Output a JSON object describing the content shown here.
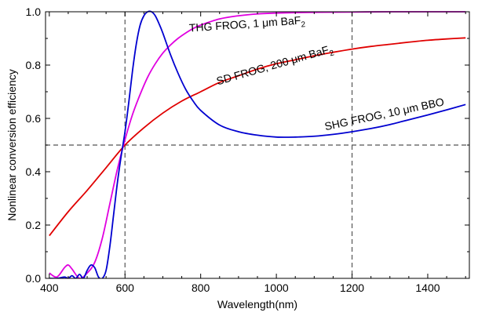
{
  "chart_data": {
    "type": "line",
    "title": "",
    "xlabel": "Wavelength(nm)",
    "ylabel": "Nonlinear conversion efficiency",
    "xlim": [
      390,
      1510
    ],
    "ylim": [
      0,
      1
    ],
    "xticks": [
      400,
      600,
      800,
      1000,
      1200,
      1400
    ],
    "yticks": [
      0.0,
      0.2,
      0.4,
      0.6,
      0.8,
      1.0
    ],
    "xtick_labels": [
      "400",
      "600",
      "800",
      "1000",
      "1200",
      "1400"
    ],
    "ytick_labels": [
      "0.0",
      "0.2",
      "0.4",
      "0.6",
      "0.8",
      "1.0"
    ],
    "grid": false,
    "series": [
      {
        "name": "SD FROG, 200 μm BaF2",
        "color": "#e00000",
        "x": [
          400,
          450,
          500,
          550,
          600,
          650,
          700,
          750,
          800,
          850,
          900,
          950,
          1000,
          1050,
          1100,
          1150,
          1200,
          1250,
          1300,
          1350,
          1400,
          1450,
          1500
        ],
        "y": [
          0.16,
          0.25,
          0.33,
          0.415,
          0.5,
          0.565,
          0.62,
          0.665,
          0.7,
          0.735,
          0.76,
          0.785,
          0.805,
          0.82,
          0.835,
          0.848,
          0.86,
          0.87,
          0.878,
          0.886,
          0.893,
          0.898,
          0.902
        ]
      },
      {
        "name": "THG FROG, 1 μm BaF2",
        "color": "#e000e0",
        "x": [
          400,
          420,
          440,
          450,
          460,
          480,
          500,
          520,
          540,
          560,
          580,
          600,
          620,
          640,
          660,
          680,
          700,
          720,
          740,
          760,
          780,
          800,
          850,
          900,
          950,
          1000,
          1100,
          1200,
          1300,
          1400,
          1500
        ],
        "y": [
          0.02,
          0.005,
          0.04,
          0.05,
          0.035,
          0.0,
          0.02,
          0.06,
          0.15,
          0.28,
          0.41,
          0.52,
          0.615,
          0.69,
          0.755,
          0.805,
          0.845,
          0.875,
          0.9,
          0.92,
          0.937,
          0.95,
          0.973,
          0.985,
          0.992,
          0.995,
          0.998,
          0.999,
          1.0,
          1.0,
          1.0
        ]
      },
      {
        "name": "SHG FROG, 10 μm BBO",
        "color": "#0000d0",
        "x": [
          400,
          420,
          440,
          450,
          460,
          470,
          480,
          490,
          500,
          510,
          520,
          530,
          540,
          550,
          560,
          570,
          580,
          590,
          600,
          610,
          620,
          630,
          640,
          650,
          660,
          670,
          680,
          690,
          700,
          720,
          740,
          760,
          780,
          800,
          850,
          900,
          950,
          1000,
          1050,
          1100,
          1150,
          1200,
          1250,
          1300,
          1350,
          1400,
          1450,
          1500
        ],
        "y": [
          0.0,
          0.0,
          0.005,
          0.0,
          0.01,
          0.0,
          0.015,
          0.0,
          0.03,
          0.05,
          0.04,
          0.005,
          0.0,
          0.03,
          0.12,
          0.24,
          0.36,
          0.46,
          0.55,
          0.66,
          0.78,
          0.88,
          0.95,
          0.985,
          1.0,
          1.0,
          0.985,
          0.955,
          0.92,
          0.84,
          0.77,
          0.71,
          0.665,
          0.63,
          0.575,
          0.55,
          0.537,
          0.53,
          0.53,
          0.533,
          0.54,
          0.55,
          0.562,
          0.577,
          0.595,
          0.613,
          0.632,
          0.652
        ]
      }
    ],
    "reference_lines": {
      "horizontal": [
        0.5
      ],
      "vertical": [
        600,
        1200
      ],
      "style": "dashed",
      "color": "#555555"
    },
    "annotations": [
      {
        "text": "THG FROG, 1 μm BaF",
        "sub": "2",
        "x": 770,
        "y": 0.925,
        "rotate": -4
      },
      {
        "text": "SD FROG, 200 μm BaF",
        "sub": "2",
        "x": 845,
        "y": 0.725,
        "rotate": -16
      },
      {
        "text": "SHG FROG, 10 μm BBO",
        "sub": "",
        "x": 1130,
        "y": 0.555,
        "rotate": -12
      }
    ]
  }
}
